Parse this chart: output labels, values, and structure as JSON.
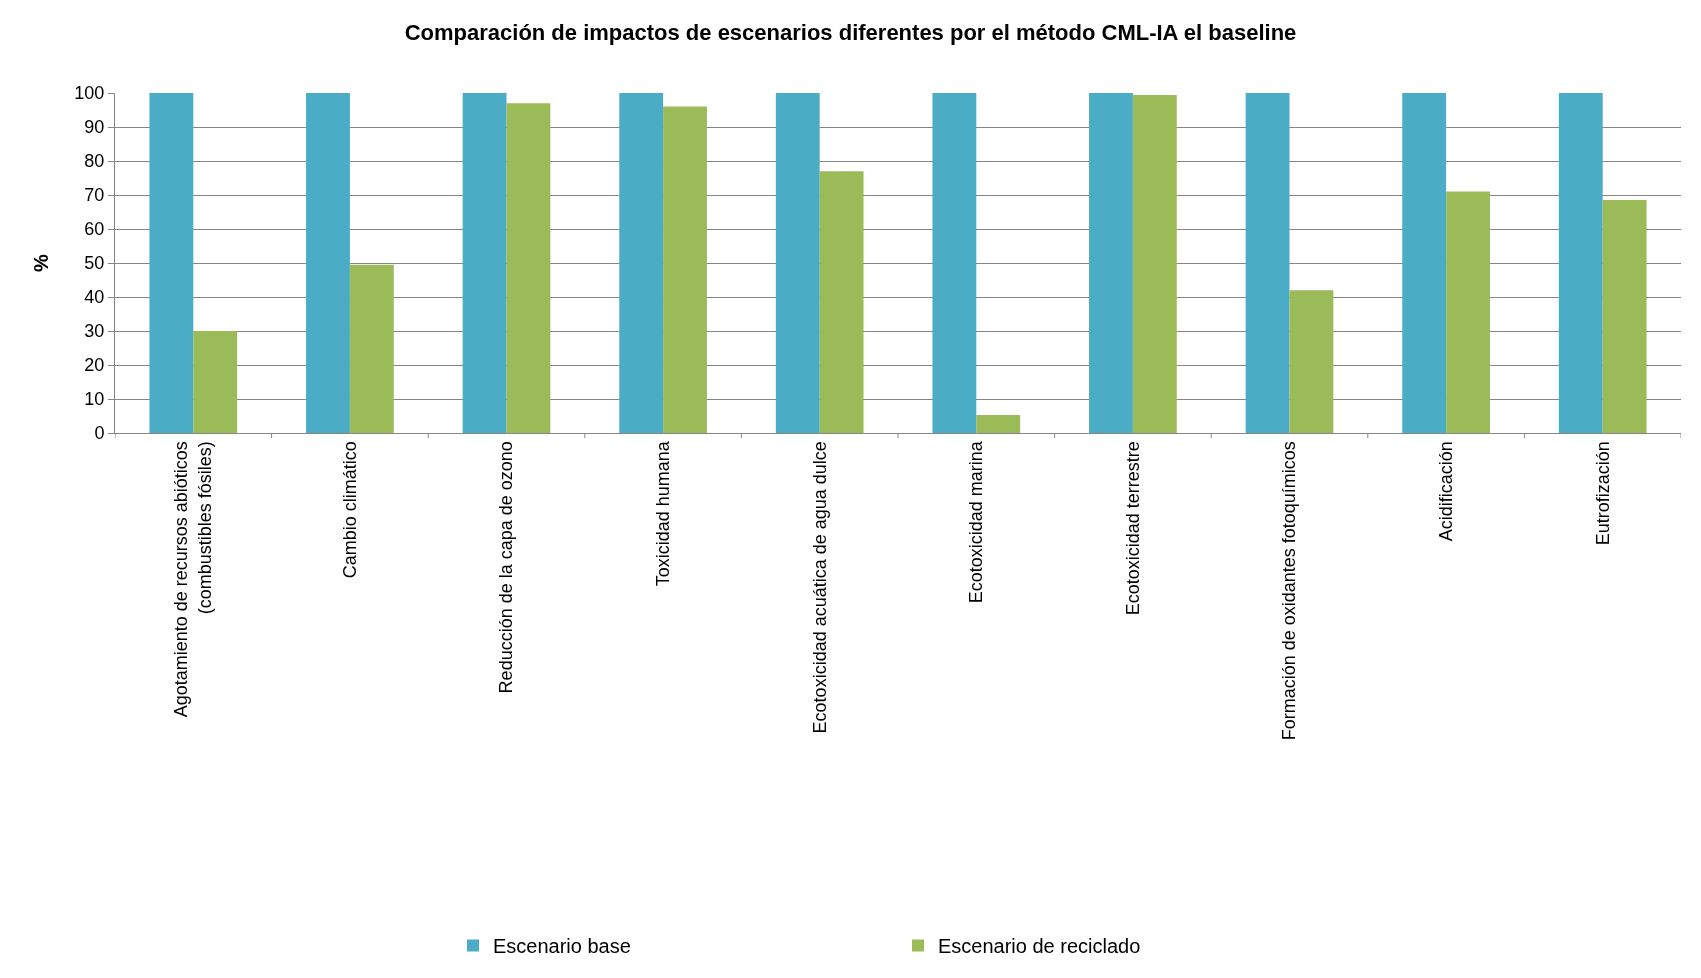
{
  "chart_data": {
    "type": "bar",
    "title": "Comparación de impactos de escenarios diferentes por el método CML-IA el baseline",
    "ylabel": "%",
    "categories": [
      "Agotamiento de recursos abióticos (combustibles fósiles)",
      "Cambio climático",
      "Reducción de la capa de ozono",
      "Toxicidad humana",
      "Ecotoxicidad acuática de agua dulce",
      "Ecotoxicidad marina",
      "Ecotoxicidad terrestre",
      "Formación de oxidantes fotoquímicos",
      "Acidificación",
      "Eutrofización"
    ],
    "series": [
      {
        "name": "Escenario base",
        "color": "#4bacc6",
        "values": [
          100,
          100,
          100,
          100,
          100,
          100,
          100,
          100,
          100,
          100
        ]
      },
      {
        "name": "Escenario de reciclado",
        "color": "#9bbb59",
        "values": [
          30,
          49.5,
          97,
          96,
          77,
          5.3,
          99.4,
          42,
          71,
          68.5
        ]
      }
    ],
    "ylim": [
      0,
      100
    ],
    "yticks": [
      0,
      10,
      20,
      30,
      40,
      50,
      60,
      70,
      80,
      90,
      100
    ],
    "grid": "y",
    "legend": "bottom"
  }
}
